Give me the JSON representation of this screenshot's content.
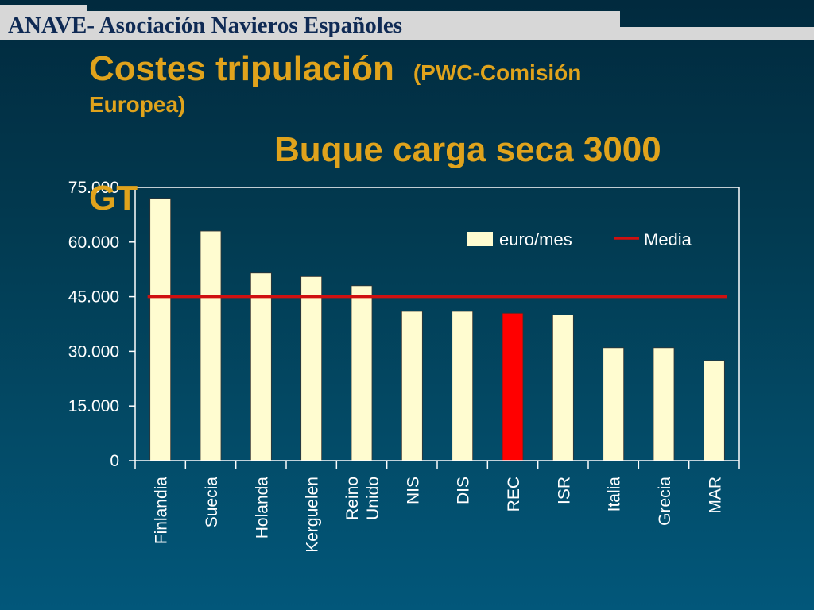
{
  "header": {
    "org_title": "ANAVE- Asociación Navieros Españoles"
  },
  "title": {
    "main": "Costes tripulación",
    "source_part1": "(PWC-Comisión",
    "source_part2": "Europea)",
    "subtitle_part1": "Buque carga seca 3000",
    "subtitle_part2": "GT"
  },
  "colors": {
    "title": "#e0a31c",
    "bar": "#fffcd0",
    "bar_highlight": "#ff0000",
    "media_line": "#d01010",
    "axis": "#ffffff",
    "plot_border": "#ffffff"
  },
  "chart_data": {
    "type": "bar",
    "categories": [
      [
        "Finlandia"
      ],
      [
        "Suecia"
      ],
      [
        "Holanda"
      ],
      [
        "Kerguelen"
      ],
      [
        "Reino",
        "Unido"
      ],
      [
        "NIS"
      ],
      [
        "DIS"
      ],
      [
        "REC"
      ],
      [
        "ISR"
      ],
      [
        "Italia"
      ],
      [
        "Grecia"
      ],
      [
        "MAR"
      ]
    ],
    "series": [
      {
        "name": "euro/mes",
        "values": [
          72000,
          63000,
          51500,
          50500,
          48000,
          41000,
          41000,
          40500,
          40000,
          31000,
          31000,
          27500
        ]
      },
      {
        "name": "Media",
        "type": "line",
        "value": 45000
      }
    ],
    "highlight_category_index": 7,
    "ylim": [
      0,
      75000
    ],
    "yticks": [
      "0",
      "15.000",
      "30.000",
      "45.000",
      "60.000",
      "75.000"
    ],
    "ytick_values": [
      0,
      15000,
      30000,
      45000,
      60000,
      75000
    ],
    "legend_position": "top-right",
    "grid": false
  }
}
